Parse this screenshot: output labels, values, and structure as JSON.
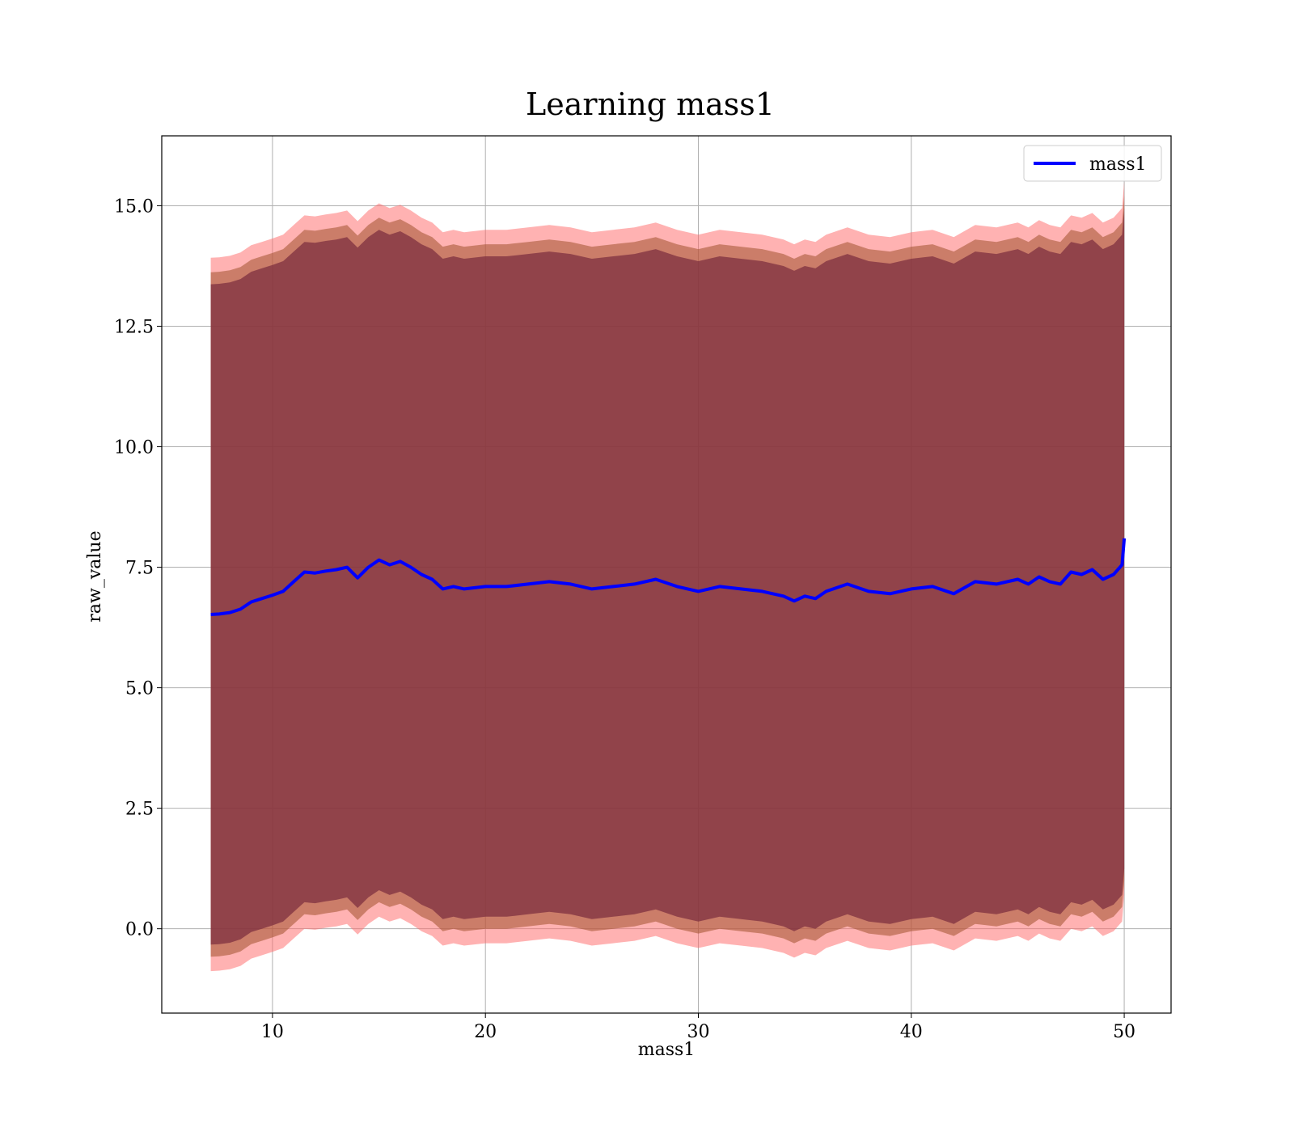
{
  "chart_data": {
    "type": "area",
    "title": "Learning mass1",
    "xlabel": "mass1",
    "ylabel": "raw_value",
    "xlim": [
      4.8,
      52.2
    ],
    "ylim": [
      -1.75,
      16.45
    ],
    "x_ticks": [
      10,
      20,
      30,
      40,
      50
    ],
    "x_tick_labels": [
      "10",
      "20",
      "30",
      "40",
      "50"
    ],
    "y_ticks": [
      0.0,
      2.5,
      5.0,
      7.5,
      10.0,
      12.5,
      15.0
    ],
    "y_tick_labels": [
      "0.0",
      "2.5",
      "5.0",
      "7.5",
      "10.0",
      "12.5",
      "15.0"
    ],
    "grid": true,
    "legend": {
      "position": "top-right",
      "entries": [
        "mass1"
      ]
    },
    "colors": {
      "mean_line": "#0000ff",
      "inner_band": "#7a2d3f",
      "middle_band": "#a0522d",
      "outer_band": "#ff6666",
      "grid": "#b0b0b0"
    },
    "series": [
      {
        "name": "mass1",
        "x": [
          7.1,
          7.5,
          8.0,
          8.5,
          9.0,
          9.5,
          10.0,
          10.5,
          11.0,
          11.5,
          12.0,
          12.5,
          13.0,
          13.5,
          14.0,
          14.5,
          15.0,
          15.5,
          16.0,
          16.5,
          17.0,
          17.5,
          18.0,
          18.5,
          19.0,
          20.0,
          21.0,
          22.0,
          23.0,
          24.0,
          25.0,
          26.0,
          27.0,
          28.0,
          29.0,
          30.0,
          31.0,
          32.0,
          33.0,
          34.0,
          34.5,
          35.0,
          35.5,
          36.0,
          37.0,
          38.0,
          39.0,
          40.0,
          41.0,
          42.0,
          43.0,
          44.0,
          45.0,
          45.5,
          46.0,
          46.5,
          47.0,
          47.5,
          48.0,
          48.5,
          49.0,
          49.5,
          49.9,
          50.0
        ],
        "y": [
          6.52,
          6.53,
          6.56,
          6.63,
          6.78,
          6.85,
          6.92,
          7.0,
          7.2,
          7.4,
          7.38,
          7.42,
          7.45,
          7.5,
          7.28,
          7.5,
          7.65,
          7.55,
          7.62,
          7.5,
          7.35,
          7.25,
          7.05,
          7.1,
          7.05,
          7.1,
          7.1,
          7.15,
          7.2,
          7.15,
          7.05,
          7.1,
          7.15,
          7.25,
          7.1,
          7.0,
          7.1,
          7.05,
          7.0,
          6.9,
          6.8,
          6.9,
          6.85,
          7.0,
          7.15,
          7.0,
          6.95,
          7.05,
          7.1,
          6.95,
          7.2,
          7.15,
          7.25,
          7.15,
          7.3,
          7.2,
          7.15,
          7.4,
          7.35,
          7.45,
          7.25,
          7.35,
          7.55,
          8.1
        ],
        "bands": [
          {
            "name": "outer",
            "lower_offset": 7.4,
            "upper_offset": 7.4
          },
          {
            "name": "middle",
            "lower_offset": 7.1,
            "upper_offset": 7.1
          },
          {
            "name": "inner",
            "lower_offset": 6.85,
            "upper_offset": 6.85
          }
        ]
      }
    ]
  }
}
